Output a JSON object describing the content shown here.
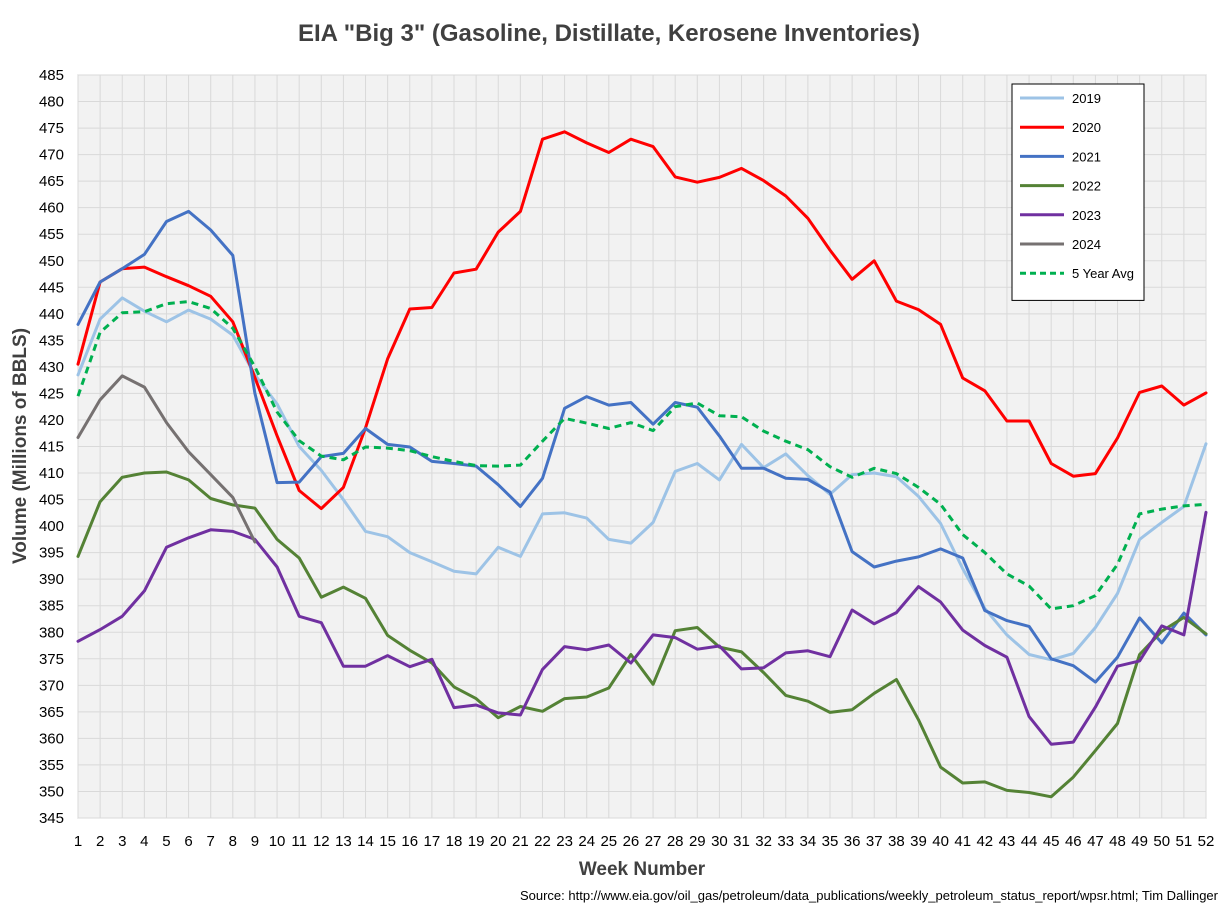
{
  "chart_data": {
    "type": "line",
    "title": "EIA \"Big 3\" (Gasoline, Distillate, Kerosene Inventories)",
    "xlabel": "Week Number",
    "ylabel": "Volume (Millions of BBLS)",
    "source": "Source: http://www.eia.gov/oil_gas/petroleum/data_publications/weekly_petroleum_status_report/wpsr.html; Tim Dallinger",
    "ylim": [
      345,
      485
    ],
    "yticks": [
      345,
      350,
      355,
      360,
      365,
      370,
      375,
      380,
      385,
      390,
      395,
      400,
      405,
      410,
      415,
      420,
      425,
      430,
      435,
      440,
      445,
      450,
      455,
      460,
      465,
      470,
      475,
      480,
      485
    ],
    "x": [
      1,
      2,
      3,
      4,
      5,
      6,
      7,
      8,
      9,
      10,
      11,
      12,
      13,
      14,
      15,
      16,
      17,
      18,
      19,
      20,
      21,
      22,
      23,
      24,
      25,
      26,
      27,
      28,
      29,
      30,
      31,
      32,
      33,
      34,
      35,
      36,
      37,
      38,
      39,
      40,
      41,
      42,
      43,
      44,
      45,
      46,
      47,
      48,
      49,
      50,
      51,
      52
    ],
    "grid": true,
    "legend_position": "top-right",
    "series": [
      {
        "name": "2019",
        "color": "#9DC3E6",
        "dashed": false,
        "values": [
          428.5,
          439,
          443,
          440.5,
          438.5,
          440.7,
          439,
          436,
          428.5,
          423,
          415,
          410.5,
          405,
          399,
          398,
          395,
          393.3,
          391.5,
          391,
          396,
          394.3,
          402.3,
          402.5,
          401.5,
          397.5,
          396.8,
          400.7,
          410.3,
          411.8,
          408.7,
          415.4,
          411,
          413.6,
          409.5,
          406,
          409.7,
          410,
          409.3,
          405.6,
          400.5,
          392,
          384.5,
          379.5,
          375.8,
          374.8,
          376,
          380.9,
          387.3,
          397.5,
          400.7,
          403.7,
          415.5
        ]
      },
      {
        "name": "2020",
        "color": "#FF0000",
        "dashed": false,
        "values": [
          430.5,
          446,
          448.5,
          448.8,
          447,
          445.3,
          443.3,
          438.5,
          428,
          417,
          406.7,
          403.3,
          407.3,
          418.5,
          431.5,
          440.9,
          441.2,
          447.7,
          448.4,
          455.4,
          459.3,
          472.9,
          474.3,
          472.2,
          470.4,
          472.9,
          471.5,
          465.8,
          464.8,
          465.7,
          467.4,
          465.1,
          462.2,
          458,
          452,
          446.5,
          450,
          442.4,
          440.8,
          438,
          427.9,
          425.5,
          419.8,
          419.8,
          411.8,
          409.4,
          409.9,
          416.6,
          425.2,
          426.4,
          422.8,
          425.1
        ]
      },
      {
        "name": "2021",
        "color": "#4472C4",
        "dashed": false,
        "values": [
          438,
          446,
          448.5,
          451.2,
          457.4,
          459.3,
          455.8,
          451,
          425,
          408.2,
          408.3,
          413.1,
          413.7,
          418.4,
          415.4,
          414.9,
          412.2,
          411.8,
          411.3,
          407.8,
          403.7,
          409,
          422.2,
          424.4,
          422.8,
          423.3,
          419.2,
          423.3,
          422.4,
          417,
          410.9,
          410.9,
          409,
          408.8,
          406.4,
          395.2,
          392.3,
          393.4,
          394.2,
          395.7,
          394,
          384.1,
          382.2,
          381.1,
          375,
          373.7,
          370.6,
          375.3,
          382.7,
          378,
          383.6,
          379.5
        ]
      },
      {
        "name": "2022",
        "color": "#548235",
        "dashed": false,
        "values": [
          394.3,
          404.6,
          409.2,
          410,
          410.2,
          408.7,
          405.2,
          404,
          403.4,
          397.5,
          394,
          386.6,
          388.5,
          386.4,
          379.4,
          376.6,
          374.2,
          369.7,
          367.5,
          363.9,
          366,
          365.1,
          367.5,
          367.8,
          369.5,
          375.8,
          370.2,
          380.3,
          380.9,
          377.2,
          376.3,
          372.4,
          368.1,
          367,
          364.9,
          365.4,
          368.5,
          371.1,
          363.5,
          354.6,
          351.6,
          351.8,
          350.2,
          349.8,
          349,
          352.7,
          357.7,
          362.8,
          375.8,
          380.2,
          382.8,
          379.7
        ]
      },
      {
        "name": "2023",
        "color": "#7030A0",
        "dashed": false,
        "values": [
          378.3,
          380.5,
          383,
          387.8,
          396,
          397.8,
          399.3,
          399,
          397.5,
          392.3,
          383,
          381.8,
          373.6,
          373.6,
          375.6,
          373.5,
          374.9,
          365.8,
          366.3,
          364.8,
          364.4,
          373,
          377.3,
          376.7,
          377.6,
          374.2,
          379.5,
          379,
          376.8,
          377.4,
          373.1,
          373.3,
          376.1,
          376.5,
          375.4,
          384.2,
          381.6,
          383.7,
          388.6,
          385.7,
          380.4,
          377.5,
          375.3,
          364.1,
          358.9,
          359.3,
          365.9,
          373.6,
          374.6,
          381.2,
          379.5,
          402.6
        ]
      },
      {
        "name": "2024",
        "color": "#767171",
        "dashed": false,
        "values": [
          416.7,
          423.8,
          428.3,
          426.2,
          419.5,
          414,
          409.7,
          405.4,
          397,
          null,
          null,
          null,
          null,
          null,
          null,
          null,
          null,
          null,
          null,
          null,
          null,
          null,
          null,
          null,
          null,
          null,
          null,
          null,
          null,
          null,
          null,
          null,
          null,
          null,
          null,
          null,
          null,
          null,
          null,
          null,
          null,
          null,
          null,
          null,
          null,
          null,
          null,
          null,
          null,
          null,
          null,
          null
        ]
      },
      {
        "name": "5 Year Avg",
        "color": "#00B050",
        "dashed": true,
        "values": [
          424.5,
          436.5,
          440.2,
          440.4,
          441.9,
          442.3,
          441,
          437.3,
          430,
          421.5,
          416.1,
          413.2,
          412.5,
          414.9,
          414.7,
          414.2,
          413.1,
          412.2,
          411.4,
          411.3,
          411.5,
          416,
          420.3,
          419.4,
          418.4,
          419.5,
          418,
          422.5,
          423.2,
          420.8,
          420.6,
          417.9,
          416,
          414.4,
          411.2,
          409.2,
          410.9,
          409.9,
          407.3,
          404.1,
          398.4,
          395,
          391,
          388.7,
          384.4,
          385,
          386.9,
          392.8,
          402.3,
          403.2,
          403.8,
          404.1
        ]
      }
    ]
  }
}
